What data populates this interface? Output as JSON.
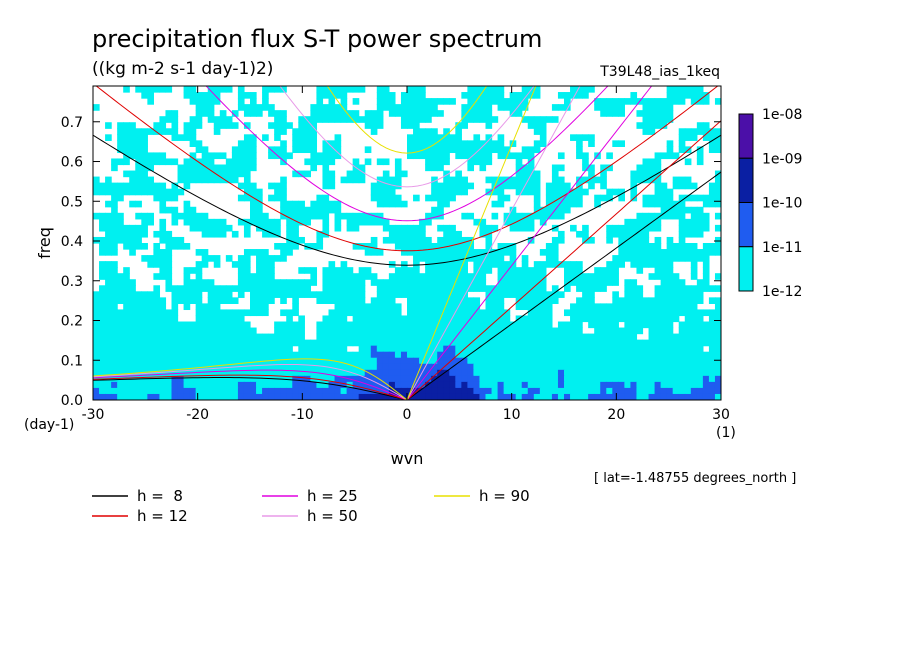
{
  "chart_data": {
    "type": "heatmap",
    "title": "precipitation flux S-T power spectrum",
    "subtitle": "((kg m-2 s-1 day-1)2)",
    "run_label": "T39L48_ias_1keq",
    "xlabel": "wvn",
    "ylabel": "freq",
    "x_unit": "(1)",
    "y_unit": "(day-1)",
    "xlim": [
      -30,
      30
    ],
    "ylim": [
      0,
      0.79
    ],
    "x_ticks": [
      -30,
      -20,
      -10,
      0,
      10,
      20,
      30
    ],
    "x_tick_labels": [
      "-30",
      "-20",
      "-10",
      "0",
      "10",
      "20",
      "30"
    ],
    "y_ticks": [
      0.0,
      0.1,
      0.2,
      0.3,
      0.4,
      0.5,
      0.6,
      0.7
    ],
    "y_tick_labels": [
      "0.0",
      "0.1",
      "0.2",
      "0.3",
      "0.4",
      "0.5",
      "0.6",
      "0.7"
    ],
    "colorbar": {
      "labels": [
        "1e-08",
        "1e-09",
        "1e-10",
        "1e-11",
        "1e-12"
      ],
      "colors": [
        "#4b0fa8",
        "#0a1fa3",
        "#1f5cf0",
        "#00f0f0"
      ],
      "scale": "log"
    },
    "grid": false,
    "annotation": "[ lat=-1.48755 degrees_north ]",
    "series": [
      {
        "name": "h =  8",
        "color": "#000000",
        "h": 8
      },
      {
        "name": "h = 12",
        "color": "#e00000",
        "h": 12
      },
      {
        "name": "h = 25",
        "color": "#e000e0",
        "h": 25
      },
      {
        "name": "h = 50",
        "color": "#e89ae8",
        "h": 50
      },
      {
        "name": "h = 90",
        "color": "#e8e000",
        "h": 90
      }
    ]
  }
}
